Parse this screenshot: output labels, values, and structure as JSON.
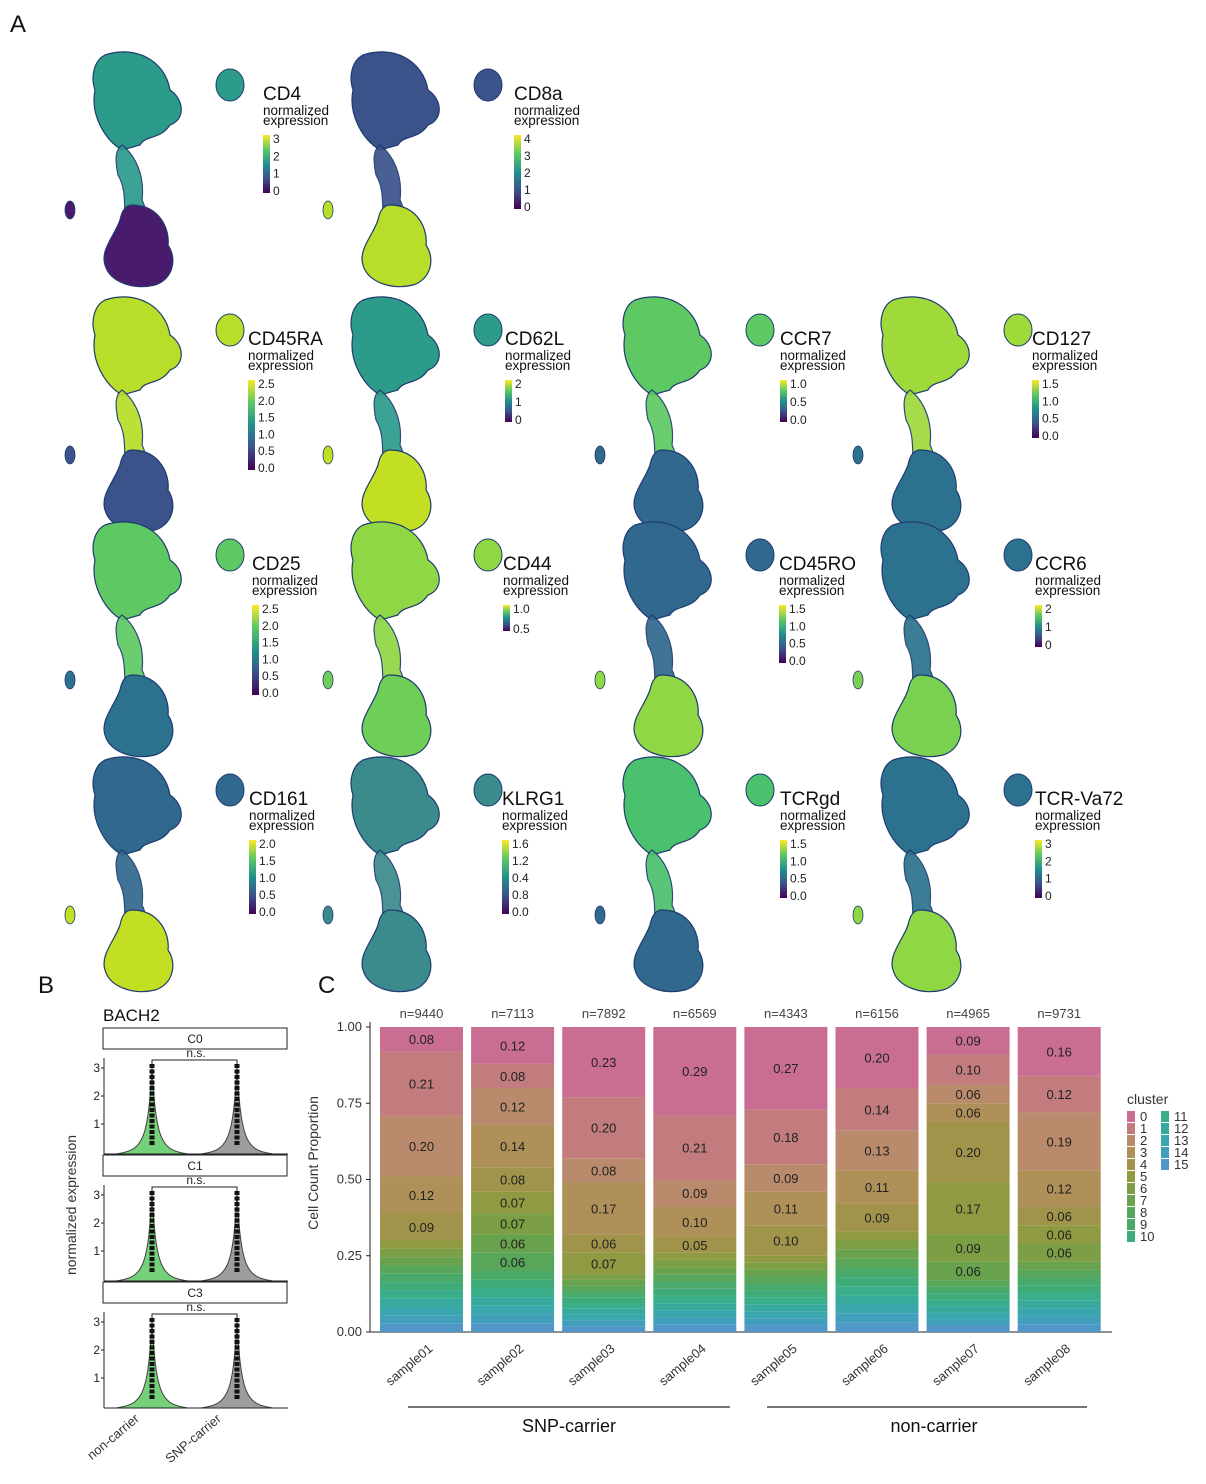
{
  "panel_labels": {
    "a": "A",
    "b": "B",
    "c": "C"
  },
  "panel_a": {
    "subtitle_line1": "normalized",
    "subtitle_line2": "expression",
    "markers": [
      {
        "name": "CD4",
        "ticks": [
          "3",
          "2",
          "1",
          "0"
        ]
      },
      {
        "name": "CD8a",
        "ticks": [
          "4",
          "3",
          "2",
          "1",
          "0"
        ]
      },
      {
        "name": "CD45RA",
        "ticks": [
          "2.5",
          "2.0",
          "1.5",
          "1.0",
          "0.5",
          "0.0"
        ]
      },
      {
        "name": "CD62L",
        "ticks": [
          "2",
          "1",
          "0"
        ]
      },
      {
        "name": "CCR7",
        "ticks": [
          "1.0",
          "0.5",
          "0.0"
        ]
      },
      {
        "name": "CD127",
        "ticks": [
          "1.5",
          "1.0",
          "0.5",
          "0.0"
        ]
      },
      {
        "name": "CD25",
        "ticks": [
          "2.5",
          "2.0",
          "1.5",
          "1.0",
          "0.5",
          "0.0"
        ]
      },
      {
        "name": "CD44",
        "ticks": [
          "1.0",
          "0.5"
        ]
      },
      {
        "name": "CD45RO",
        "ticks": [
          "1.5",
          "1.0",
          "0.5",
          "0.0"
        ]
      },
      {
        "name": "CCR6",
        "ticks": [
          "2",
          "1",
          "0"
        ]
      },
      {
        "name": "CD161",
        "ticks": [
          "2.0",
          "1.5",
          "1.0",
          "0.5",
          "0.0"
        ]
      },
      {
        "name": "KLRG1",
        "ticks": [
          "1.6",
          "1.2",
          "0.4",
          "0.8",
          "0.0"
        ]
      },
      {
        "name": "TCRgd",
        "ticks": [
          "1.5",
          "1.0",
          "0.5",
          "0.0"
        ]
      },
      {
        "name": "TCR-Va72",
        "ticks": [
          "3",
          "2",
          "1",
          "0"
        ]
      }
    ]
  },
  "panel_b": {
    "gene": "BACH2",
    "ylabel": "normalized expression",
    "groups": [
      "non-carrier",
      "SNP-carrier"
    ],
    "yticks": [
      "3",
      "2",
      "1"
    ],
    "facets": [
      {
        "cluster": "C0",
        "sig": "n.s."
      },
      {
        "cluster": "C1",
        "sig": "n.s."
      },
      {
        "cluster": "C3",
        "sig": "n.s."
      }
    ]
  },
  "chart_data": {
    "type": "bar",
    "ylabel": "Cell Count Proportion",
    "ylim": [
      0,
      1
    ],
    "yticks": [
      "0.00",
      "0.25",
      "0.50",
      "0.75",
      "1.00"
    ],
    "categories": [
      "sample01",
      "sample02",
      "sample03",
      "sample04",
      "sample05",
      "sample06",
      "sample07",
      "sample08"
    ],
    "n_labels": [
      "n=9440",
      "n=7113",
      "n=7892",
      "n=6569",
      "n=4343",
      "n=6156",
      "n=4965",
      "n=9731"
    ],
    "group_labels": [
      "SNP-carrier",
      "non-carrier"
    ],
    "legend_title": "cluster",
    "clusters": [
      "0",
      "1",
      "2",
      "3",
      "4",
      "5",
      "6",
      "7",
      "8",
      "9",
      "10",
      "11",
      "12",
      "13",
      "14",
      "15"
    ],
    "colors": [
      "#c96d93",
      "#c27c7e",
      "#b98a6c",
      "#ae9058",
      "#a0944a",
      "#8f9a42",
      "#7c9e44",
      "#69a24c",
      "#58a65a",
      "#49a968",
      "#3fab78",
      "#3aad8b",
      "#37aa9d",
      "#3aa6ad",
      "#429fbb",
      "#5096c6"
    ],
    "stacks": [
      [
        0.08,
        0.21,
        0.2,
        0.12,
        0.09
      ],
      [
        0.12,
        0.08,
        0.12,
        0.14,
        0.08,
        0.07,
        0.07,
        0.06,
        0.06
      ],
      [
        0.23,
        0.2,
        0.08,
        0.17,
        0.06,
        0.07
      ],
      [
        0.29,
        0.21,
        0.09,
        0.1,
        0.05
      ],
      [
        0.27,
        0.18,
        0.09,
        0.11,
        0.1
      ],
      [
        0.2,
        0.14,
        0.13,
        0.11,
        0.09
      ],
      [
        0.09,
        0.1,
        0.06,
        0.06,
        0.2,
        0.17,
        0.09,
        0.06
      ],
      [
        0.16,
        0.12,
        0.19,
        0.12,
        0.06,
        0.06,
        0.06
      ]
    ]
  }
}
